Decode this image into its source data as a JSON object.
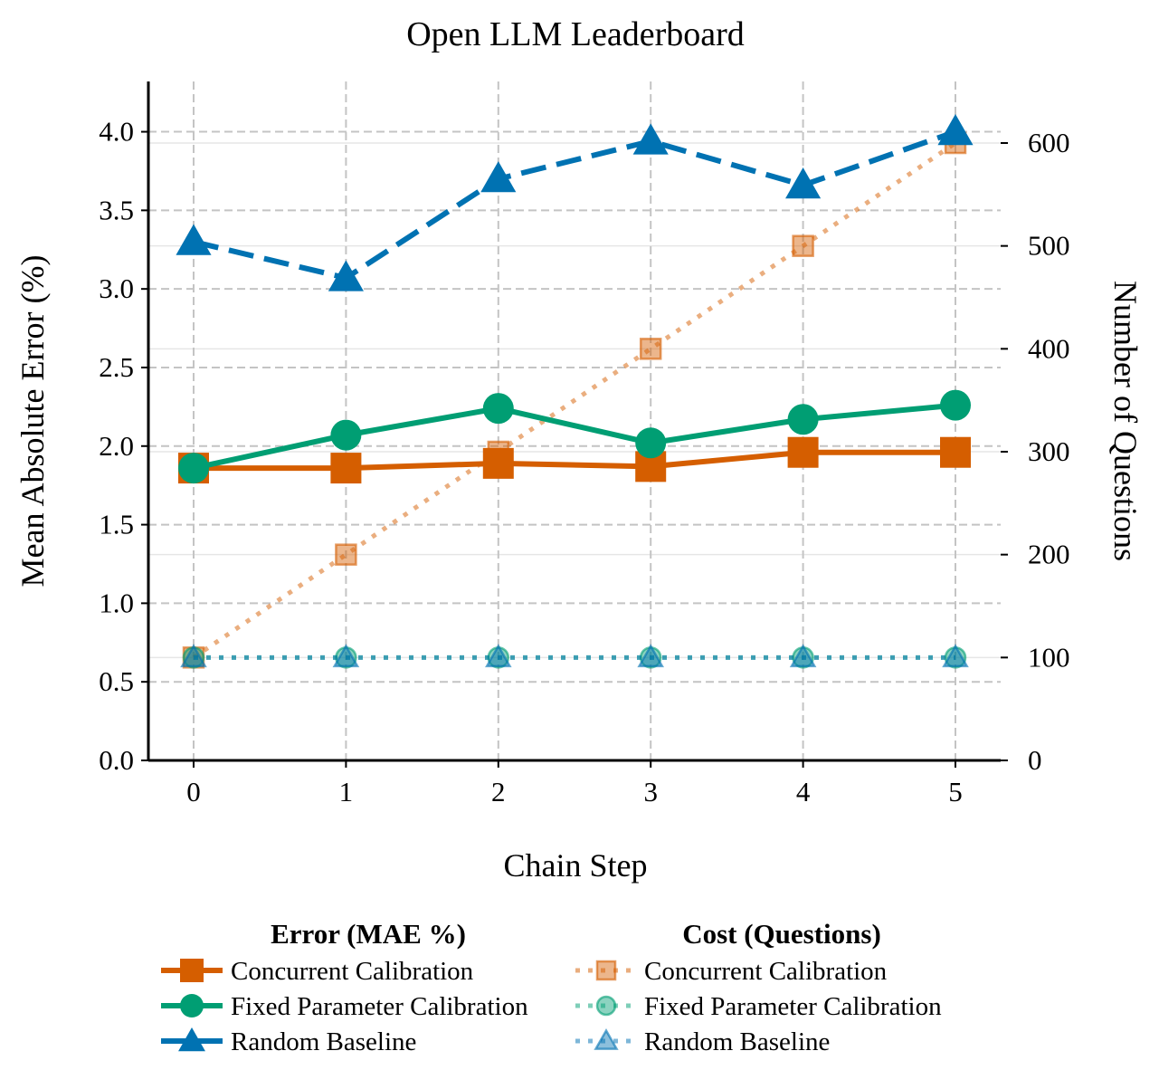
{
  "chart_data": {
    "type": "line",
    "title": "Open LLM Leaderboard",
    "xlabel": "Chain Step",
    "ylabel": "Mean Absolute Error (%)",
    "y2label": "Number of Questions",
    "x": [
      0,
      1,
      2,
      3,
      4,
      5
    ],
    "xticks": [
      "0",
      "1",
      "2",
      "3",
      "4",
      "5"
    ],
    "ylim": [
      0,
      4.32
    ],
    "yticks": [
      "0.0",
      "0.5",
      "1.0",
      "1.5",
      "2.0",
      "2.5",
      "3.0",
      "3.5",
      "4.0"
    ],
    "y2lim": [
      0,
      600
    ],
    "y2ticks": [
      "0",
      "100",
      "200",
      "300",
      "400",
      "500",
      "600"
    ],
    "grid": true,
    "legend_position": "bottom",
    "legend_groups": [
      {
        "title": "Error (MAE %)",
        "axis": "left",
        "series": [
          {
            "name": "Concurrent Calibration",
            "color": "#D55E00",
            "marker": "square",
            "linestyle": "solid",
            "values": [
              1.86,
              1.86,
              1.89,
              1.87,
              1.96,
              1.96
            ]
          },
          {
            "name": "Fixed Parameter Calibration",
            "color": "#009E73",
            "marker": "circle",
            "linestyle": "solid",
            "values": [
              1.86,
              2.07,
              2.24,
              2.02,
              2.17,
              2.26
            ]
          },
          {
            "name": "Random Baseline",
            "color": "#0072B2",
            "marker": "triangle",
            "linestyle": "dashed",
            "values": [
              3.3,
              3.07,
              3.7,
              3.94,
              3.66,
              4.0
            ]
          }
        ]
      },
      {
        "title": "Cost (Questions)",
        "axis": "right",
        "series": [
          {
            "name": "Concurrent Calibration",
            "color": "#D55E00",
            "marker": "square",
            "linestyle": "dotted",
            "values": [
              100,
              200,
              300,
              400,
              500,
              600
            ]
          },
          {
            "name": "Fixed Parameter Calibration",
            "color": "#009E73",
            "marker": "circle",
            "linestyle": "dotted",
            "values": [
              100,
              100,
              100,
              100,
              100,
              100
            ]
          },
          {
            "name": "Random Baseline",
            "color": "#0072B2",
            "marker": "triangle",
            "linestyle": "dotted",
            "values": [
              100,
              100,
              100,
              100,
              100,
              100
            ]
          }
        ]
      }
    ]
  }
}
